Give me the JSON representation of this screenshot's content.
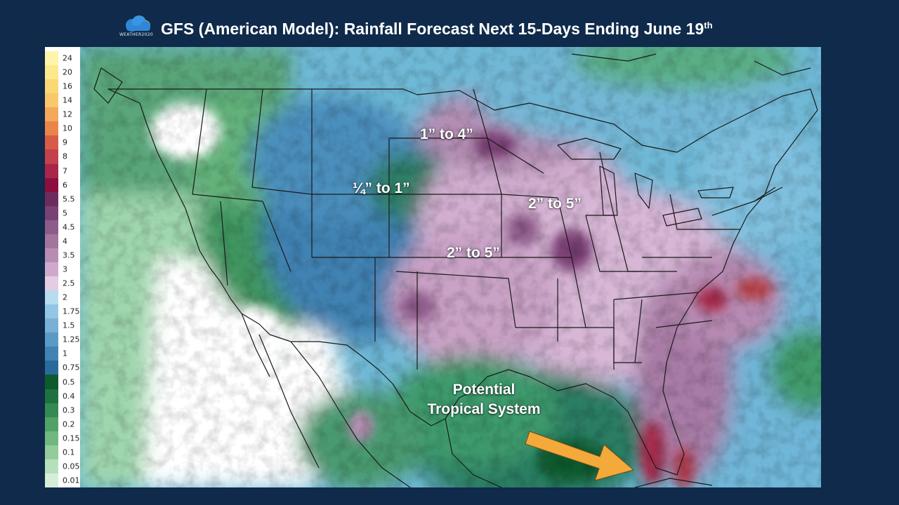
{
  "header": {
    "logo_text": "WEATHER2020",
    "title": "GFS (American Model): Rainfall Forecast Next 15-Days Ending June 19",
    "title_suffix": "th"
  },
  "legend": [
    {
      "label": "24",
      "color": "#fff5a8"
    },
    {
      "label": "20",
      "color": "#fde98c"
    },
    {
      "label": "16",
      "color": "#fad873"
    },
    {
      "label": "14",
      "color": "#f8c86a"
    },
    {
      "label": "12",
      "color": "#f4a85a"
    },
    {
      "label": "10",
      "color": "#e9854a"
    },
    {
      "label": "9",
      "color": "#d65c48"
    },
    {
      "label": "8",
      "color": "#c4404a"
    },
    {
      "label": "7",
      "color": "#a9254a"
    },
    {
      "label": "6",
      "color": "#8a0f3e"
    },
    {
      "label": "5.5",
      "color": "#6e2c5e"
    },
    {
      "label": "5",
      "color": "#7a4174"
    },
    {
      "label": "4.5",
      "color": "#8e5c8a"
    },
    {
      "label": "4",
      "color": "#a2759d"
    },
    {
      "label": "3.5",
      "color": "#b88db3"
    },
    {
      "label": "3",
      "color": "#cfa9cb"
    },
    {
      "label": "2.5",
      "color": "#e4cce2"
    },
    {
      "label": "2",
      "color": "#b6dcf0"
    },
    {
      "label": "1.75",
      "color": "#94c5e4"
    },
    {
      "label": "1.5",
      "color": "#78b0d6"
    },
    {
      "label": "1.25",
      "color": "#5c9ac6"
    },
    {
      "label": "1",
      "color": "#4184b4"
    },
    {
      "label": "0.75",
      "color": "#2a6b9c"
    },
    {
      "label": "0.5",
      "color": "#0e5a2e"
    },
    {
      "label": "0.4",
      "color": "#1e7240"
    },
    {
      "label": "0.3",
      "color": "#348a52"
    },
    {
      "label": "0.2",
      "color": "#52a268"
    },
    {
      "label": "0.15",
      "color": "#70b880"
    },
    {
      "label": "0.1",
      "color": "#92cc9c"
    },
    {
      "label": "0.05",
      "color": "#b6e0bc"
    },
    {
      "label": "0.01",
      "color": "#d6eed8"
    }
  ],
  "annotations": {
    "a1": "1” to 4”",
    "a2": "¼” to 1”",
    "a3": "2” to 5”",
    "a4": "2” to 5”",
    "tropical_line1": "Potential",
    "tropical_line2": "Tropical System"
  },
  "colors": {
    "background": "#0f2a4a",
    "arrow": "#f4a93b"
  }
}
